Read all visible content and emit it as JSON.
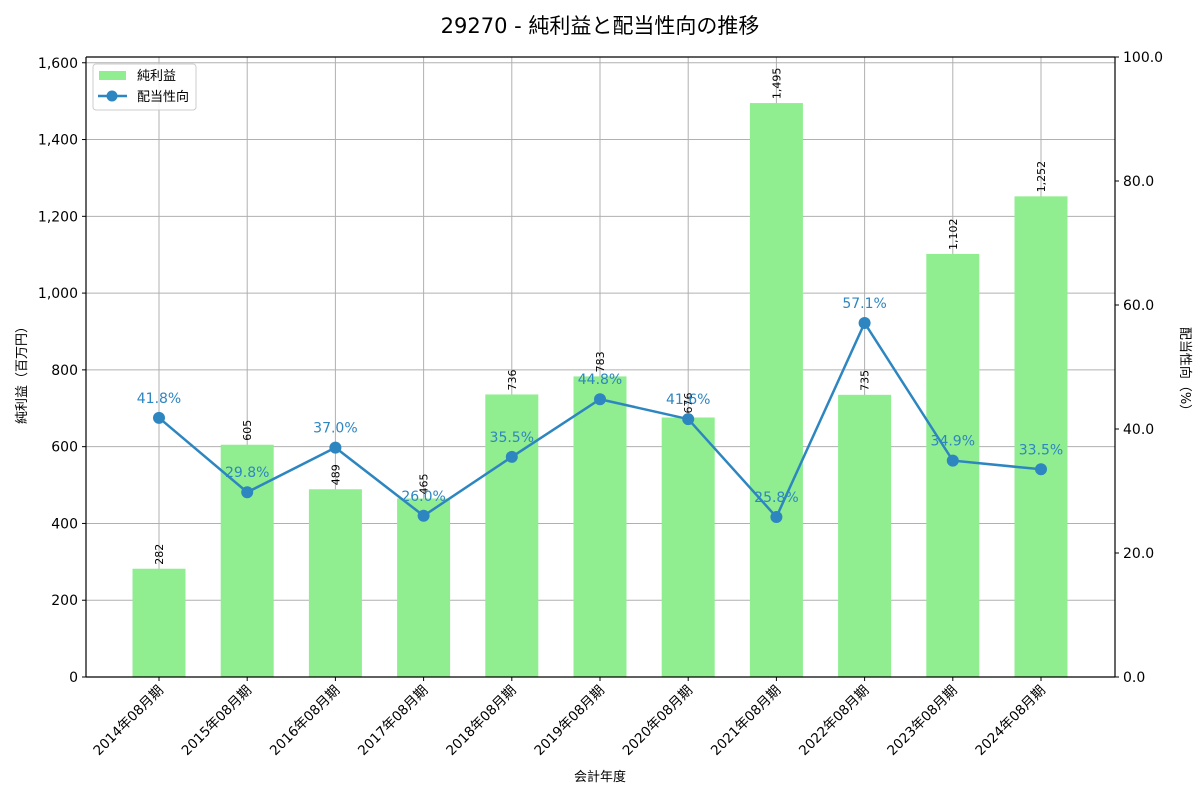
{
  "chart_data": {
    "type": "bar+line",
    "title": "29270 - 純利益と配当性向の推移",
    "xlabel": "会計年度",
    "ylabel": "純利益（百万円）",
    "ylabel_right": "配当性向（%）",
    "categories": [
      "2014年08月期",
      "2015年08月期",
      "2016年08月期",
      "2017年08月期",
      "2018年08月期",
      "2019年08月期",
      "2020年08月期",
      "2021年08月期",
      "2022年08月期",
      "2023年08月期",
      "2024年08月期"
    ],
    "series": [
      {
        "name": "純利益",
        "type": "bar",
        "axis": "left",
        "color": "#90ee90",
        "values": [
          282,
          605,
          489,
          465,
          736,
          783,
          676,
          1495,
          735,
          1102,
          1252
        ],
        "labels": [
          "282",
          "605",
          "489",
          "465",
          "736",
          "783",
          "676",
          "1,495",
          "735",
          "1,102",
          "1,252"
        ]
      },
      {
        "name": "配当性向",
        "type": "line",
        "axis": "right",
        "color": "#2e86c1",
        "values": [
          41.8,
          29.8,
          37.0,
          26.0,
          35.5,
          44.8,
          41.6,
          25.8,
          57.1,
          34.9,
          33.5
        ],
        "labels": [
          "41.8%",
          "29.8%",
          "37.0%",
          "26.0%",
          "35.5%",
          "44.8%",
          "41.6%",
          "25.8%",
          "57.1%",
          "34.9%",
          "33.5%"
        ]
      }
    ],
    "ylim": [
      0,
      1615
    ],
    "ylim_right": [
      0,
      100
    ],
    "yticks": [
      0,
      200,
      400,
      600,
      800,
      1000,
      1200,
      1400,
      1600
    ],
    "ytick_labels": [
      "0",
      "200",
      "400",
      "600",
      "800",
      "1,000",
      "1,200",
      "1,400",
      "1,600"
    ],
    "yticks_right": [
      0,
      20,
      40,
      60,
      80,
      100
    ],
    "ytick_labels_right": [
      "0.0",
      "20.0",
      "40.0",
      "60.0",
      "80.0",
      "100.0"
    ],
    "grid": true,
    "legend_position": "upper left",
    "legend": [
      "純利益",
      "配当性向"
    ]
  }
}
